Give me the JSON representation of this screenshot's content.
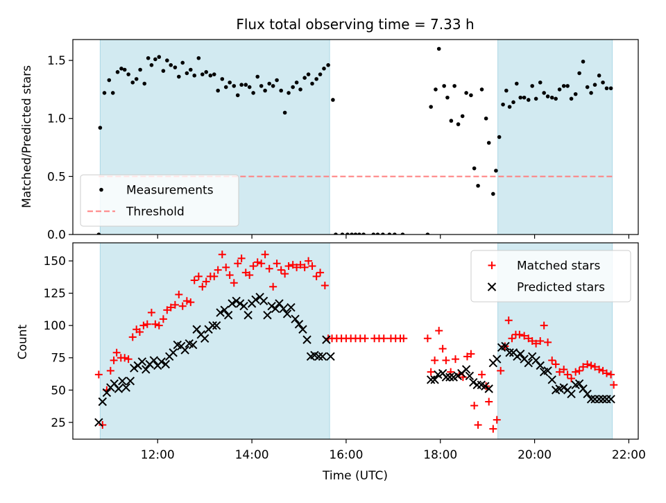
{
  "chart_data": {
    "type": "scatter",
    "title": "Flux total observing time = 7.33 h",
    "xlabel": "Time (UTC)",
    "x_unit": "hours (UTC)",
    "xlim": [
      10.2,
      22.2
    ],
    "xticks": [
      {
        "value": 12,
        "label": "12:00"
      },
      {
        "value": 14,
        "label": "14:00"
      },
      {
        "value": 16,
        "label": "16:00"
      },
      {
        "value": 18,
        "label": "18:00"
      },
      {
        "value": 20,
        "label": "20:00"
      },
      {
        "value": 22,
        "label": "22:00"
      }
    ],
    "shaded_intervals": [
      [
        10.78,
        15.65
      ],
      [
        19.22,
        21.65
      ]
    ],
    "shade_color": "#add8e6",
    "panels": [
      {
        "ylabel": "Matched/Predicted stars",
        "ylim": [
          0,
          1.68
        ],
        "yticks": [
          {
            "value": 0.0,
            "label": "0.0"
          },
          {
            "value": 0.5,
            "label": "0.5"
          },
          {
            "value": 1.0,
            "label": "1.0"
          },
          {
            "value": 1.5,
            "label": "1.5"
          }
        ],
        "legend": {
          "position": "lower-left"
        },
        "threshold": {
          "name": "Threshold",
          "value": 0.5,
          "x_range": [
            10.75,
            21.65
          ],
          "color": "#ff7f7f"
        },
        "series": [
          {
            "name": "Measurements",
            "marker": "dot",
            "color": "#000000",
            "x": [
              10.75,
              10.78,
              10.87,
              10.97,
              11.05,
              11.15,
              11.23,
              11.3,
              11.38,
              11.47,
              11.55,
              11.63,
              11.72,
              11.8,
              11.87,
              11.95,
              12.03,
              12.12,
              12.2,
              12.28,
              12.37,
              12.45,
              12.53,
              12.62,
              12.7,
              12.78,
              12.87,
              12.95,
              13.03,
              13.12,
              13.2,
              13.28,
              13.37,
              13.45,
              13.53,
              13.62,
              13.7,
              13.78,
              13.87,
              13.95,
              14.03,
              14.12,
              14.2,
              14.28,
              14.37,
              14.45,
              14.53,
              14.62,
              14.7,
              14.78,
              14.87,
              14.95,
              15.03,
              15.12,
              15.2,
              15.28,
              15.37,
              15.45,
              15.53,
              15.62,
              15.72,
              15.78,
              15.92,
              16.03,
              16.12,
              16.2,
              16.28,
              16.37,
              16.58,
              16.67,
              16.78,
              16.92,
              17.03,
              17.2,
              17.73,
              17.8,
              17.9,
              17.97,
              18.08,
              18.15,
              18.23,
              18.3,
              18.38,
              18.47,
              18.55,
              18.65,
              18.72,
              18.8,
              18.88,
              18.97,
              19.03,
              19.12,
              19.18,
              19.25,
              19.33,
              19.4,
              19.47,
              19.55,
              19.62,
              19.7,
              19.78,
              19.87,
              19.95,
              20.03,
              20.12,
              20.2,
              20.28,
              20.37,
              20.45,
              20.53,
              20.62,
              20.7,
              20.78,
              20.87,
              20.95,
              21.03,
              21.12,
              21.2,
              21.28,
              21.37,
              21.45,
              21.53,
              21.62
            ],
            "y": [
              0.0,
              0.92,
              1.22,
              1.33,
              1.22,
              1.4,
              1.43,
              1.42,
              1.38,
              1.31,
              1.34,
              1.42,
              1.3,
              1.52,
              1.46,
              1.51,
              1.53,
              1.41,
              1.5,
              1.46,
              1.44,
              1.36,
              1.48,
              1.39,
              1.42,
              1.37,
              1.52,
              1.38,
              1.4,
              1.37,
              1.38,
              1.24,
              1.34,
              1.27,
              1.31,
              1.28,
              1.2,
              1.29,
              1.29,
              1.27,
              1.22,
              1.36,
              1.28,
              1.24,
              1.3,
              1.28,
              1.33,
              1.24,
              1.05,
              1.22,
              1.27,
              1.31,
              1.25,
              1.35,
              1.38,
              1.3,
              1.34,
              1.38,
              1.43,
              1.46,
              1.16,
              0.0,
              0.0,
              0.0,
              0.0,
              0.0,
              0.0,
              0.0,
              0.0,
              0.0,
              0.0,
              0.0,
              0.0,
              0.0,
              0.0,
              1.1,
              1.25,
              1.6,
              1.28,
              1.18,
              0.98,
              1.28,
              0.95,
              1.02,
              1.22,
              1.2,
              0.57,
              0.42,
              1.25,
              1.0,
              0.79,
              0.35,
              0.55,
              0.84,
              1.12,
              1.24,
              1.1,
              1.14,
              1.3,
              1.18,
              1.18,
              1.16,
              1.28,
              1.17,
              1.31,
              1.22,
              1.19,
              1.18,
              1.17,
              1.25,
              1.28,
              1.28,
              1.17,
              1.21,
              1.39,
              1.49,
              1.27,
              1.22,
              1.29,
              1.37,
              1.31,
              1.26,
              1.26
            ]
          }
        ]
      },
      {
        "ylabel": "Count",
        "ylim": [
          12,
          164
        ],
        "yticks": [
          {
            "value": 25,
            "label": "25"
          },
          {
            "value": 50,
            "label": "50"
          },
          {
            "value": 75,
            "label": "75"
          },
          {
            "value": 100,
            "label": "100"
          },
          {
            "value": 125,
            "label": "125"
          },
          {
            "value": 150,
            "label": "150"
          }
        ],
        "legend": {
          "position": "top-right"
        },
        "series": [
          {
            "name": "Matched stars",
            "marker": "plus",
            "color": "#ff0000",
            "x": [
              10.75,
              10.83,
              10.92,
              11.0,
              11.07,
              11.13,
              11.22,
              11.3,
              11.38,
              11.47,
              11.55,
              11.62,
              11.7,
              11.78,
              11.87,
              11.95,
              12.03,
              12.12,
              12.2,
              12.28,
              12.37,
              12.45,
              12.53,
              12.62,
              12.7,
              12.78,
              12.87,
              12.95,
              13.03,
              13.12,
              13.2,
              13.28,
              13.37,
              13.45,
              13.53,
              13.62,
              13.7,
              13.78,
              13.87,
              13.95,
              14.03,
              14.12,
              14.2,
              14.28,
              14.37,
              14.45,
              14.53,
              14.62,
              14.7,
              14.78,
              14.87,
              14.95,
              15.03,
              15.12,
              15.2,
              15.28,
              15.37,
              15.45,
              15.55,
              15.62,
              15.7,
              15.8,
              15.9,
              16.0,
              16.1,
              16.2,
              16.3,
              16.4,
              16.6,
              16.7,
              16.8,
              16.95,
              17.05,
              17.15,
              17.22,
              17.73,
              17.8,
              17.88,
              17.97,
              18.05,
              18.12,
              18.22,
              18.32,
              18.4,
              18.48,
              18.57,
              18.65,
              18.72,
              18.8,
              18.88,
              18.97,
              19.03,
              19.12,
              19.2,
              19.28,
              19.37,
              19.45,
              19.52,
              19.6,
              19.68,
              19.78,
              19.87,
              19.95,
              20.03,
              20.12,
              20.2,
              20.28,
              20.37,
              20.45,
              20.53,
              20.62,
              20.7,
              20.78,
              20.87,
              20.95,
              21.03,
              21.12,
              21.2,
              21.28,
              21.37,
              21.45,
              21.53,
              21.62,
              21.68
            ],
            "y": [
              62,
              23,
              50,
              65,
              73,
              79,
              75,
              75,
              74,
              91,
              97,
              95,
              100,
              101,
              110,
              101,
              100,
              105,
              112,
              114,
              116,
              124,
              115,
              119,
              118,
              135,
              138,
              130,
              134,
              138,
              138,
              143,
              155,
              145,
              139,
              133,
              148,
              152,
              141,
              139,
              146,
              149,
              148,
              155,
              144,
              130,
              148,
              143,
              140,
              146,
              147,
              145,
              147,
              145,
              150,
              146,
              138,
              141,
              131,
              90,
              90,
              90,
              90,
              90,
              90,
              90,
              90,
              90,
              90,
              90,
              90,
              90,
              90,
              90,
              90,
              90,
              64,
              73,
              96,
              82,
              73,
              64,
              74,
              62,
              60,
              76,
              78,
              38,
              23,
              62,
              53,
              41,
              20,
              27,
              65,
              84,
              104,
              90,
              93,
              93,
              92,
              90,
              88,
              86,
              88,
              100,
              87,
              73,
              70,
              64,
              66,
              62,
              59,
              64,
              65,
              68,
              70,
              69,
              68,
              66,
              65,
              63,
              62,
              54
            ],
            "note": ""
          },
          {
            "name": "Predicted stars",
            "marker": "x",
            "color": "#000000",
            "x": [
              10.75,
              10.83,
              10.92,
              11.0,
              11.08,
              11.17,
              11.25,
              11.33,
              11.42,
              11.5,
              11.58,
              11.67,
              11.75,
              11.83,
              11.92,
              12.0,
              12.08,
              12.17,
              12.25,
              12.33,
              12.42,
              12.5,
              12.58,
              12.67,
              12.75,
              12.83,
              12.92,
              13.0,
              13.08,
              13.17,
              13.25,
              13.33,
              13.42,
              13.5,
              13.58,
              13.67,
              13.75,
              13.83,
              13.92,
              14.0,
              14.08,
              14.17,
              14.25,
              14.33,
              14.42,
              14.5,
              14.58,
              14.67,
              14.75,
              14.83,
              14.92,
              15.0,
              15.08,
              15.17,
              15.25,
              15.33,
              15.42,
              15.5,
              15.58,
              15.67,
              17.8,
              17.88,
              17.95,
              18.05,
              18.12,
              18.2,
              18.28,
              18.37,
              18.45,
              18.55,
              18.62,
              18.7,
              18.78,
              18.87,
              18.95,
              19.03,
              19.12,
              19.2,
              19.3,
              19.38,
              19.47,
              19.55,
              19.63,
              19.7,
              19.78,
              19.87,
              19.95,
              20.03,
              20.12,
              20.2,
              20.28,
              20.37,
              20.45,
              20.53,
              20.62,
              20.7,
              20.78,
              20.87,
              20.95,
              21.03,
              21.12,
              21.2,
              21.28,
              21.37,
              21.45,
              21.53,
              21.62
            ],
            "y": [
              25,
              41,
              48,
              52,
              55,
              51,
              57,
              52,
              57,
              67,
              69,
              72,
              66,
              70,
              73,
              69,
              72,
              70,
              76,
              79,
              85,
              84,
              81,
              86,
              85,
              97,
              93,
              90,
              97,
              100,
              100,
              110,
              112,
              108,
              117,
              119,
              117,
              115,
              108,
              117,
              120,
              122,
              119,
              108,
              115,
              113,
              117,
              113,
              109,
              114,
              105,
              101,
              97,
              89,
              76,
              77,
              76,
              76,
              89,
              76,
              58,
              58,
              62,
              63,
              60,
              60,
              60,
              61,
              63,
              66,
              61,
              56,
              54,
              54,
              53,
              51,
              71,
              74,
              83,
              84,
              79,
              79,
              76,
              78,
              74,
              71,
              76,
              73,
              69,
              64,
              65,
              58,
              50,
              51,
              52,
              50,
              47,
              54,
              55,
              51,
              47,
              43,
              43,
              43,
              43,
              43,
              43
            ]
          }
        ]
      }
    ]
  }
}
